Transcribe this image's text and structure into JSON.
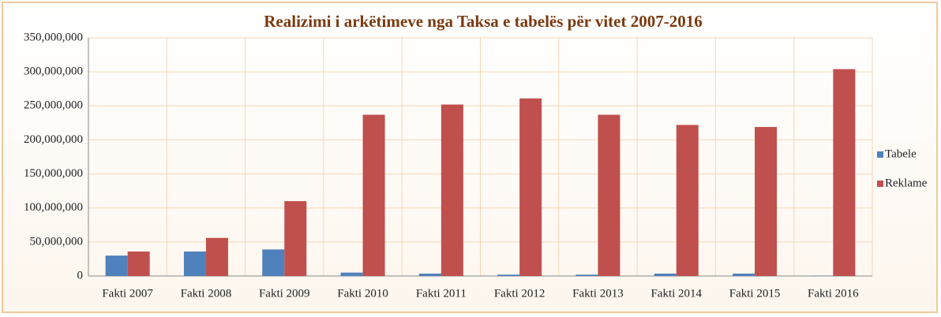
{
  "chart_data": {
    "type": "bar",
    "title": "Realizimi i arkëtimeve nga Taksa e tabelës për vitet 2007-2016",
    "categories": [
      "Fakti 2007",
      "Fakti 2008",
      "Fakti 2009",
      "Fakti 2010",
      "Fakti 2011",
      "Fakti 2012",
      "Fakti 2013",
      "Fakti 2014",
      "Fakti 2015",
      "Fakti 2016"
    ],
    "series": [
      {
        "name": "Tabele",
        "color": "#4f81bd",
        "values": [
          30000000,
          36000000,
          39000000,
          5000000,
          3500000,
          2000000,
          2000000,
          3500000,
          3500000,
          500000
        ]
      },
      {
        "name": "Reklame",
        "color": "#c0504d",
        "values": [
          36000000,
          56000000,
          110000000,
          237000000,
          252000000,
          261000000,
          237000000,
          222000000,
          219000000,
          304000000
        ]
      }
    ],
    "ylim": [
      0,
      350000000
    ],
    "yticks": [
      0,
      {
        "value": 50000000,
        "label": "50,000,000"
      },
      {
        "value": 100000000,
        "label": "100,000,000"
      },
      {
        "value": 150000000,
        "label": "150,000,000"
      },
      {
        "value": 200000000,
        "label": "200,000,000"
      },
      {
        "value": 250000000,
        "label": "250,000,000"
      },
      {
        "value": 300000000,
        "label": "300,000,000"
      },
      {
        "value": 350000000,
        "label": "350,000,000"
      }
    ],
    "grid": true,
    "legend": "right"
  }
}
